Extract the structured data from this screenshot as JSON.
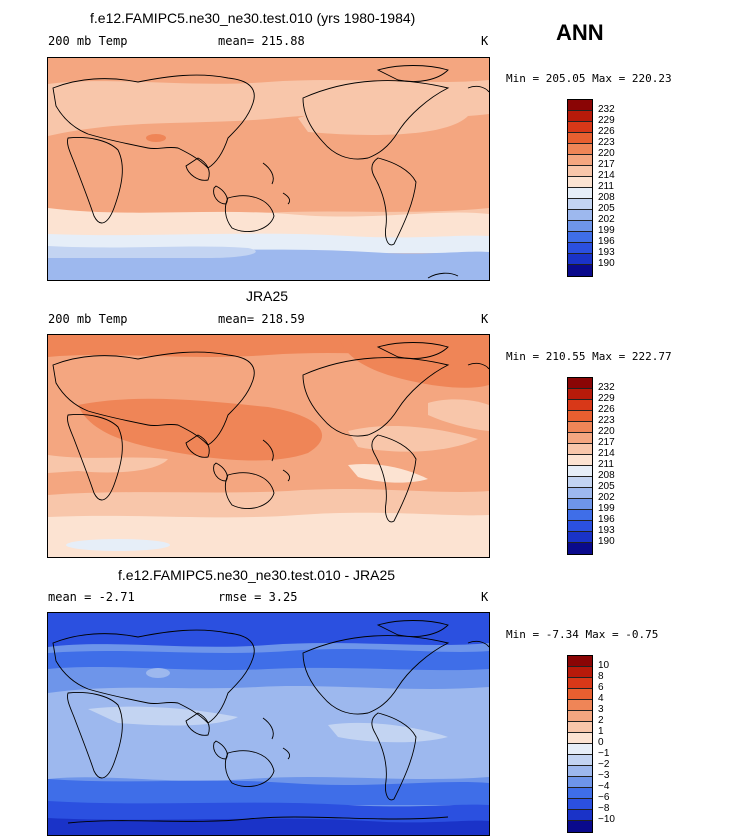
{
  "season": "ANN",
  "colors": {
    "temp": [
      "#0a0a8c",
      "#1a33c8",
      "#2b50e0",
      "#3f6ee8",
      "#6e95ea",
      "#9db8ee",
      "#c3d4f2",
      "#e6eef8",
      "#fce3d2",
      "#f8c6aa",
      "#f4a680",
      "#ef8557",
      "#e85f30",
      "#d83818",
      "#b81a0a",
      "#8a0505"
    ],
    "diff": [
      "#0a0a8c",
      "#1a33c8",
      "#2b50e0",
      "#3f6ee8",
      "#6e95ea",
      "#9db8ee",
      "#c3d4f2",
      "#e6eef8",
      "#fce3d2",
      "#f8c6aa",
      "#f4a680",
      "#ef8557",
      "#e85f30",
      "#d83818",
      "#b81a0a",
      "#8a0505"
    ]
  },
  "panels": [
    {
      "title": "f.e12.FAMIPC5.ne30_ne30.test.010 (yrs 1980-1984)",
      "left_label": "200 mb Temp",
      "center_label": "mean=  215.88",
      "units": "K",
      "minmax": "Min = 205.05 Max = 220.23",
      "levels": [
        "232",
        "229",
        "226",
        "223",
        "220",
        "217",
        "214",
        "211",
        "208",
        "205",
        "202",
        "199",
        "196",
        "193",
        "190"
      ]
    },
    {
      "title": "JRA25",
      "left_label": "200 mb Temp",
      "center_label": "mean=  218.59",
      "units": "K",
      "minmax": "Min = 210.55 Max = 222.77",
      "levels": [
        "232",
        "229",
        "226",
        "223",
        "220",
        "217",
        "214",
        "211",
        "208",
        "205",
        "202",
        "199",
        "196",
        "193",
        "190"
      ]
    },
    {
      "title": "f.e12.FAMIPC5.ne30_ne30.test.010 - JRA25",
      "left_label": "mean =   -2.71",
      "center_label": "rmse =    3.25",
      "units": "K",
      "minmax": "Min =  -7.34 Max =  -0.75",
      "levels": [
        "10",
        "8",
        "6",
        "4",
        "3",
        "2",
        "1",
        "0",
        "−1",
        "−2",
        "−3",
        "−4",
        "−6",
        "−8",
        "−10"
      ]
    }
  ]
}
